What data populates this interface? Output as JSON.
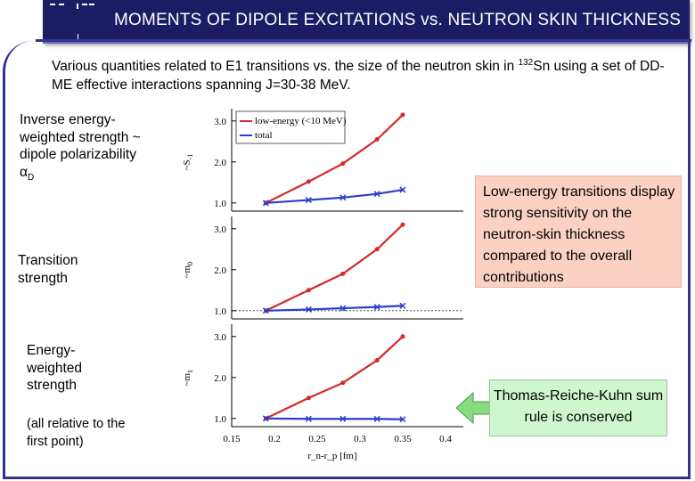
{
  "slide": {
    "title": "MOMENTS OF DIPOLE EXCITATIONS vs. NEUTRON SKIN THICKNESS",
    "subtitle_pre": "Various quantities related to E1 transitions vs. the size of the neutron skin in ",
    "subtitle_mass": "132",
    "subtitle_post": "Sn using a set of DD-ME effective interactions spanning J=30-38 MeV.",
    "label_inverse": "Inverse energy-weighted strength ~ dipole polarizability α",
    "label_inverse_sub": "D",
    "label_transition": "Transition strength",
    "label_energy": "Energy-weighted strength",
    "label_relative": "(all relative to the first point)",
    "note_low_energy": "Low-energy transitions display strong sensitivity on the neutron-skin thickness compared to the overall contributions",
    "note_trk": "Thomas-Reiche-Kuhn sum rule is conserved"
  },
  "colors": {
    "title_bg": "#1c1c64",
    "frame": "#33338a",
    "low_energy": "#d42a2a",
    "total": "#2a3ec8",
    "note_pink": "#fbd2c2",
    "note_green": "#cff7cd",
    "arrow": "#86dc7e"
  },
  "chart_data": {
    "type": "line",
    "xlabel": "r_n-r_p [fm]",
    "x_ticks": [
      "0.15",
      "0.2",
      "0.25",
      "0.3",
      "0.35",
      "0.4"
    ],
    "xlim": [
      0.15,
      0.4
    ],
    "legend": [
      "low-energy (<10 MeV)",
      "total"
    ],
    "legend_position": "top-left",
    "panels": [
      {
        "ylabel": "~S_{-1}",
        "ylim": [
          0.8,
          3.3
        ],
        "y_ticks": [
          "1.0",
          "2.0",
          "3.0"
        ],
        "series": [
          {
            "name": "low-energy (<10 MeV)",
            "x": [
              0.19,
              0.24,
              0.28,
              0.32,
              0.35
            ],
            "y": [
              1.0,
              1.52,
              1.96,
              2.55,
              3.15
            ]
          },
          {
            "name": "total",
            "x": [
              0.19,
              0.24,
              0.28,
              0.32,
              0.35
            ],
            "y": [
              1.0,
              1.07,
              1.13,
              1.22,
              1.32
            ]
          }
        ]
      },
      {
        "ylabel": "~m_0",
        "ylim": [
          0.8,
          3.3
        ],
        "y_ticks": [
          "1.0",
          "2.0",
          "3.0"
        ],
        "series": [
          {
            "name": "low-energy (<10 MeV)",
            "x": [
              0.19,
              0.24,
              0.28,
              0.32,
              0.35
            ],
            "y": [
              1.0,
              1.5,
              1.9,
              2.5,
              3.1
            ]
          },
          {
            "name": "total",
            "x": [
              0.19,
              0.24,
              0.28,
              0.32,
              0.35
            ],
            "y": [
              1.0,
              1.03,
              1.06,
              1.09,
              1.12
            ]
          }
        ]
      },
      {
        "ylabel": "~m_1",
        "ylim": [
          0.8,
          3.3
        ],
        "y_ticks": [
          "1.0",
          "2.0",
          "3.0"
        ],
        "series": [
          {
            "name": "low-energy (<10 MeV)",
            "x": [
              0.19,
              0.24,
              0.28,
              0.32,
              0.35
            ],
            "y": [
              1.0,
              1.5,
              1.87,
              2.42,
              3.0
            ]
          },
          {
            "name": "total",
            "x": [
              0.19,
              0.24,
              0.28,
              0.32,
              0.35
            ],
            "y": [
              1.0,
              0.99,
              0.99,
              0.99,
              0.98
            ]
          }
        ]
      }
    ]
  }
}
